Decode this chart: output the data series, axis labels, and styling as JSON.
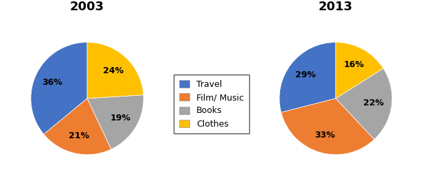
{
  "title_2003": "2003",
  "title_2013": "2013",
  "labels": [
    "Travel",
    "Film/ Music",
    "Books",
    "Clothes"
  ],
  "values_2003": [
    36,
    21,
    19,
    24
  ],
  "values_2013": [
    29,
    33,
    22,
    16
  ],
  "colors": [
    "#4472C4",
    "#ED7D31",
    "#A5A5A5",
    "#FFC000"
  ],
  "title_fontsize": 13,
  "label_fontsize": 9,
  "legend_fontsize": 9,
  "background_color": "#FFFFFF"
}
